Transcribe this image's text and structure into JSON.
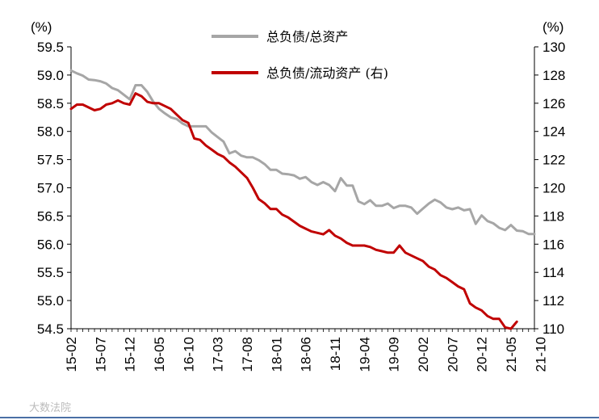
{
  "chart_data": {
    "type": "line",
    "y_left_unit": "(%)",
    "y_right_unit": "(%)",
    "ylim_left": [
      54.5,
      59.5
    ],
    "ylim_right": [
      110,
      130
    ],
    "y_left_ticks": [
      "59.5",
      "59.0",
      "58.5",
      "58.0",
      "57.5",
      "57.0",
      "56.5",
      "56.0",
      "55.5",
      "55.0",
      "54.5"
    ],
    "y_right_ticks": [
      "130",
      "128",
      "126",
      "124",
      "122",
      "120",
      "118",
      "116",
      "114",
      "112",
      "110"
    ],
    "x_ticks": [
      "15-02",
      "15-07",
      "15-12",
      "16-05",
      "16-10",
      "17-03",
      "17-08",
      "18-01",
      "18-06",
      "18-11",
      "19-04",
      "19-09",
      "20-02",
      "20-07",
      "20-12",
      "21-05",
      "21-10"
    ],
    "legend_position": "top-center",
    "grid": false,
    "series": [
      {
        "name": "总负债/总资产",
        "axis": "left",
        "color": "#a6a6a6",
        "values": [
          59.08,
          59.03,
          58.99,
          58.92,
          58.91,
          58.89,
          58.85,
          58.77,
          58.73,
          58.65,
          58.57,
          58.82,
          58.82,
          58.7,
          58.53,
          58.4,
          58.32,
          58.25,
          58.22,
          58.14,
          58.09,
          58.09,
          58.09,
          58.09,
          57.98,
          57.9,
          57.82,
          57.61,
          57.65,
          57.57,
          57.54,
          57.54,
          57.49,
          57.42,
          57.32,
          57.32,
          57.25,
          57.24,
          57.22,
          57.16,
          57.19,
          57.1,
          57.05,
          57.1,
          57.05,
          56.94,
          57.17,
          57.04,
          57.04,
          56.76,
          56.71,
          56.78,
          56.68,
          56.68,
          56.72,
          56.64,
          56.68,
          56.68,
          56.65,
          56.54,
          56.63,
          56.72,
          56.79,
          56.74,
          56.65,
          56.62,
          56.65,
          56.6,
          56.62,
          56.36,
          56.51,
          56.41,
          56.37,
          56.29,
          56.25,
          56.34,
          56.24,
          56.23,
          56.18,
          56.18
        ]
      },
      {
        "name": "总负债/流动资产 (右)",
        "axis": "right",
        "color": "#c00000",
        "values": [
          125.6,
          125.9,
          125.9,
          125.7,
          125.5,
          125.6,
          125.9,
          126.0,
          126.2,
          126.0,
          125.9,
          126.7,
          126.5,
          126.1,
          126.0,
          126.0,
          125.8,
          125.6,
          125.2,
          124.8,
          124.6,
          123.5,
          123.4,
          123.0,
          122.7,
          122.4,
          122.2,
          121.8,
          121.5,
          121.1,
          120.7,
          120.0,
          119.2,
          118.9,
          118.5,
          118.5,
          118.1,
          117.9,
          117.6,
          117.3,
          117.1,
          116.9,
          116.8,
          116.7,
          117.0,
          116.6,
          116.4,
          116.1,
          115.9,
          115.9,
          115.9,
          115.8,
          115.6,
          115.5,
          115.4,
          115.4,
          115.9,
          115.4,
          115.2,
          115.0,
          114.8,
          114.4,
          114.2,
          113.8,
          113.6,
          113.3,
          113.0,
          112.8,
          111.8,
          111.5,
          111.3,
          110.9,
          110.7,
          110.7,
          110.1,
          110.0,
          110.5
        ]
      }
    ]
  },
  "watermark": "大数法院"
}
